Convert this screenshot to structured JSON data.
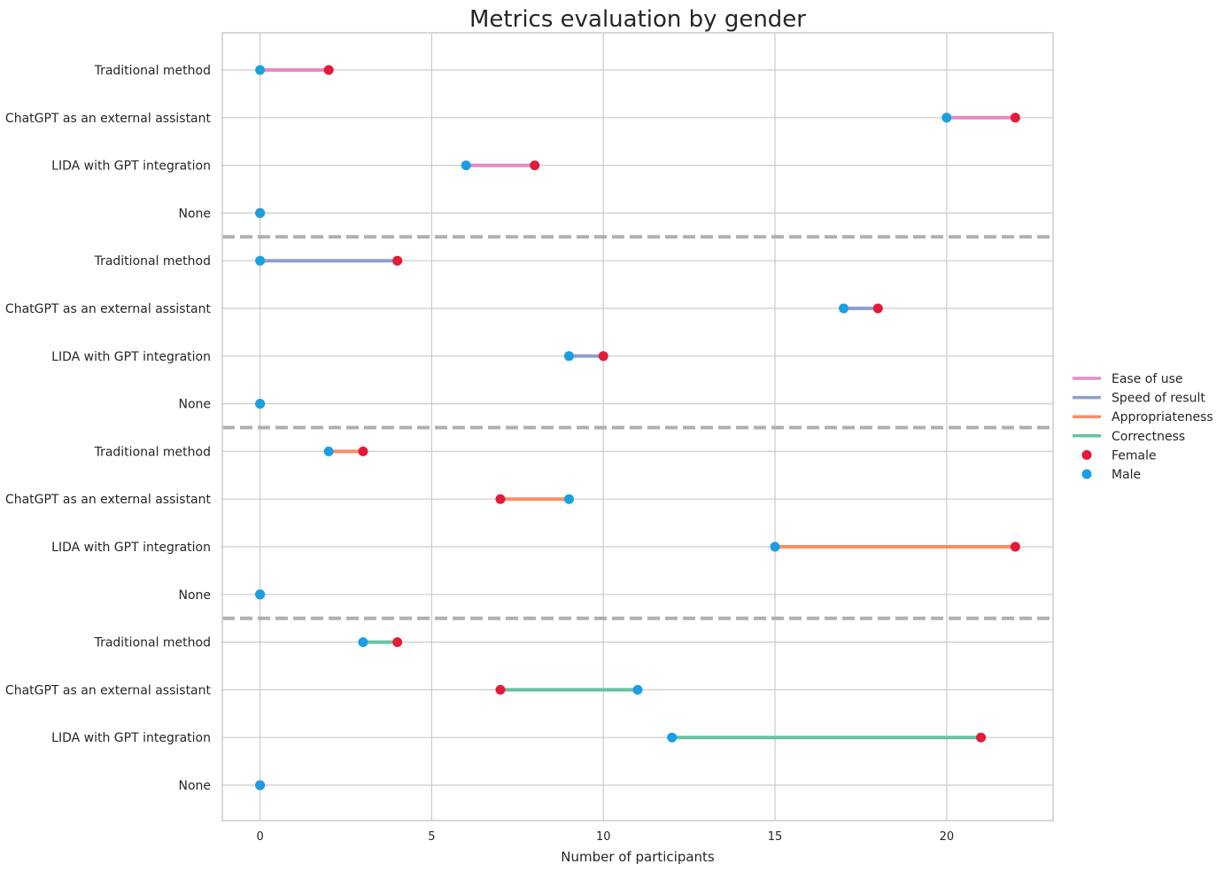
{
  "chart_data": {
    "type": "dumbbell",
    "title": "Metrics evaluation by gender",
    "xlabel": "Number of participants",
    "ylabel": "",
    "xlim": [
      -1.1,
      23.1
    ],
    "xticks": [
      0,
      5,
      10,
      15,
      20
    ],
    "grid": true,
    "legend_position": "center-right",
    "colors": {
      "female": "#e31a3a",
      "male": "#1a9fe0",
      "separator": "#b0b0b0",
      "grid": "#cccccc",
      "axes": "#cccccc"
    },
    "legend": {
      "metrics": [
        {
          "name": "Ease of use",
          "color": "#e68ac3"
        },
        {
          "name": "Speed of result",
          "color": "#8da0cb"
        },
        {
          "name": "Appropriateness",
          "color": "#fc8d62"
        },
        {
          "name": "Correctness",
          "color": "#66c2a5"
        }
      ],
      "markers": [
        {
          "name": "Female",
          "key": "female"
        },
        {
          "name": "Male",
          "key": "male"
        }
      ]
    },
    "groups": [
      {
        "metric": "Ease of use",
        "rows": [
          {
            "label": "Traditional method",
            "female": 2,
            "male": 0
          },
          {
            "label": "ChatGPT as an external assistant",
            "female": 22,
            "male": 20
          },
          {
            "label": "LIDA with GPT integration",
            "female": 8,
            "male": 6
          },
          {
            "label": "None",
            "female": 0,
            "male": 0
          }
        ]
      },
      {
        "metric": "Speed of result",
        "rows": [
          {
            "label": "Traditional method",
            "female": 4,
            "male": 0
          },
          {
            "label": "ChatGPT as an external assistant",
            "female": 18,
            "male": 17
          },
          {
            "label": "LIDA with GPT integration",
            "female": 10,
            "male": 9
          },
          {
            "label": "None",
            "female": 0,
            "male": 0
          }
        ]
      },
      {
        "metric": "Appropriateness",
        "rows": [
          {
            "label": "Traditional method",
            "female": 3,
            "male": 2
          },
          {
            "label": "ChatGPT as an external assistant",
            "female": 7,
            "male": 9
          },
          {
            "label": "LIDA with GPT integration",
            "female": 22,
            "male": 15
          },
          {
            "label": "None",
            "female": 0,
            "male": 0
          }
        ]
      },
      {
        "metric": "Correctness",
        "rows": [
          {
            "label": "Traditional method",
            "female": 4,
            "male": 3
          },
          {
            "label": "ChatGPT as an external assistant",
            "female": 7,
            "male": 11
          },
          {
            "label": "LIDA with GPT integration",
            "female": 21,
            "male": 12
          },
          {
            "label": "None",
            "female": 0,
            "male": 0
          }
        ]
      }
    ]
  }
}
